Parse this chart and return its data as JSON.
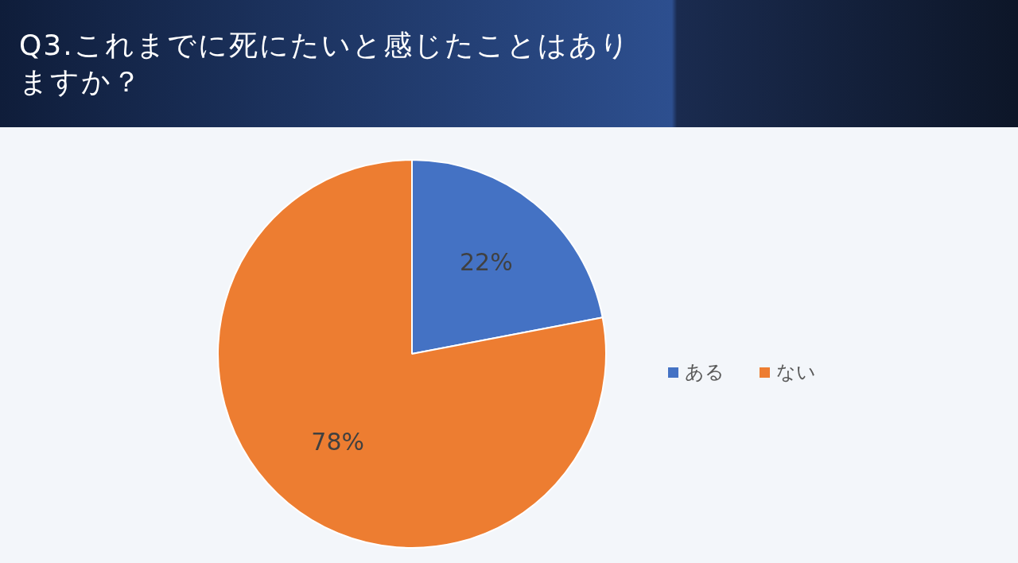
{
  "chart_data": {
    "type": "pie",
    "title": "Q3.これまでに死にたいと感じたことはありますか？",
    "categories": [
      "ある",
      "ない"
    ],
    "values": [
      22,
      78
    ],
    "colors": [
      "#4472c4",
      "#ed7d31"
    ],
    "value_labels": [
      "22%",
      "78%"
    ],
    "legend": "right"
  }
}
